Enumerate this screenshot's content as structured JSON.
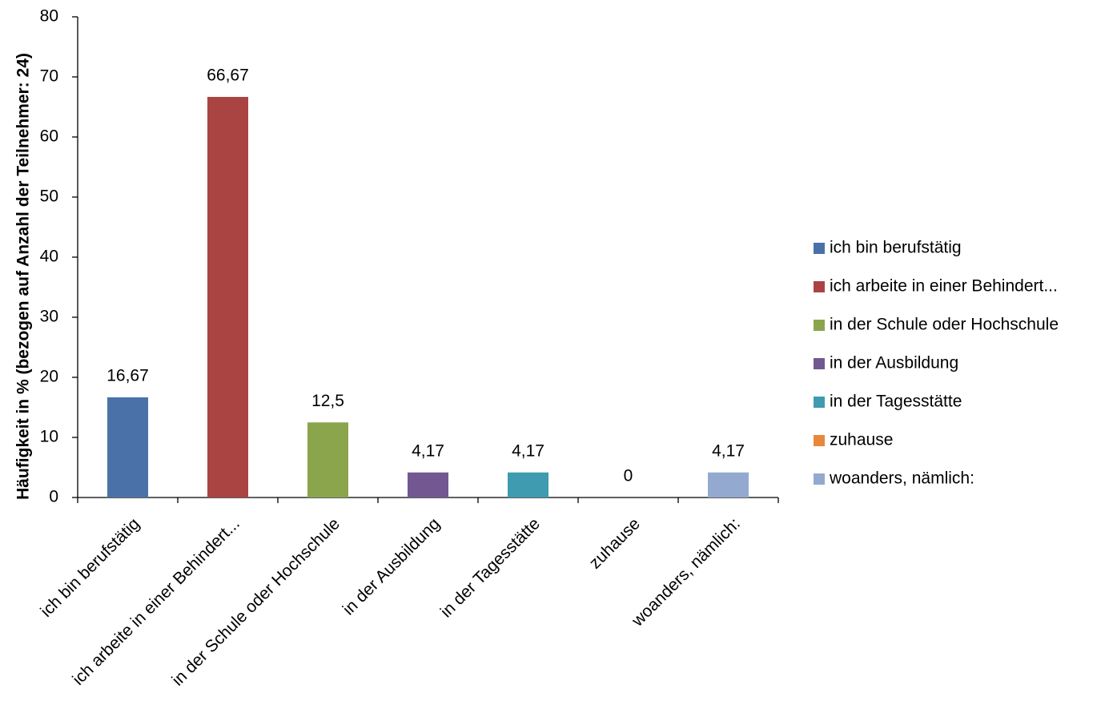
{
  "chart_data": {
    "type": "bar",
    "y_label": "Häufigkeit in % (bezogen auf Anzahl der Teilnehmer: 24)",
    "categories": [
      "ich bin berufstätig",
      "ich arbeite in einer Behindert...",
      "in der Schule oder Hochschule",
      "in der Ausbildung",
      "in der Tagesstätte",
      "zuhause",
      "woanders, nämlich:"
    ],
    "values": [
      16.67,
      66.67,
      12.5,
      4.17,
      4.17,
      0,
      4.17
    ],
    "value_labels": [
      "16,67",
      "66,67",
      "12,5",
      "4,17",
      "4,17",
      "0",
      "4,17"
    ],
    "colors": [
      "#4a72a8",
      "#a94442",
      "#8aa54c",
      "#725791",
      "#3e9bb0",
      "#e8883a",
      "#93a9d0"
    ],
    "ylim": [
      0,
      80
    ],
    "yticks": [
      0,
      10,
      20,
      30,
      40,
      50,
      60,
      70,
      80
    ],
    "legend": "right"
  }
}
